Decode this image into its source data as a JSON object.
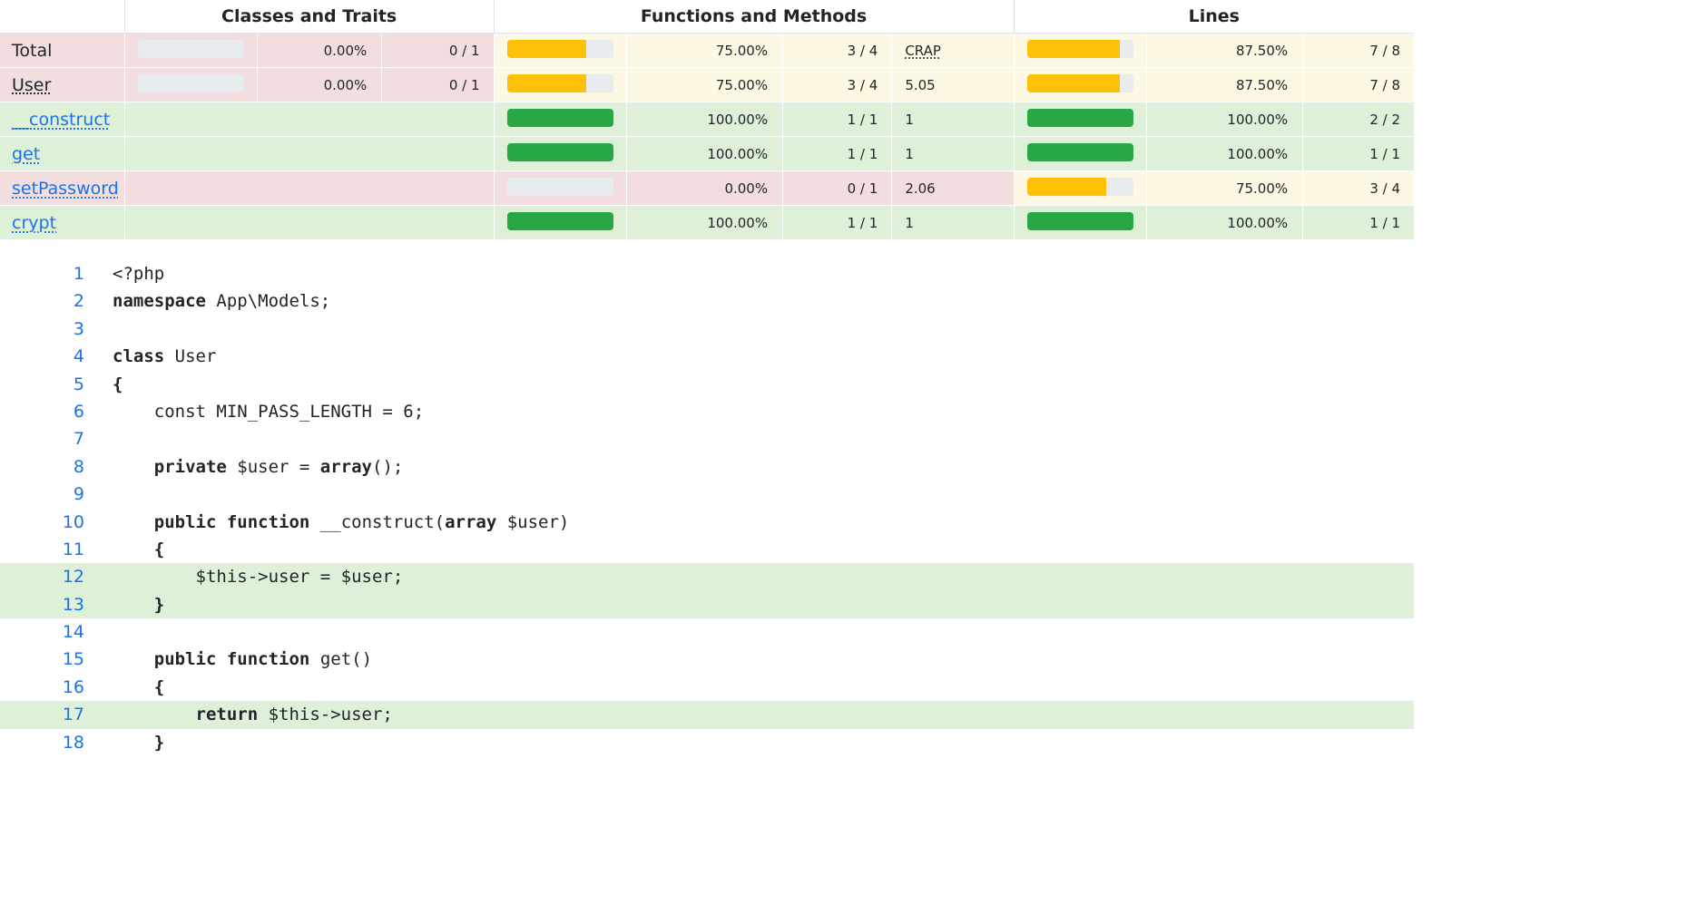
{
  "headers": {
    "blank": "",
    "classes": "Classes and Traits",
    "functions": "Functions and Methods",
    "lines": "Lines"
  },
  "rows": [
    {
      "name": "Total",
      "link": false,
      "cls_pct": "0.00%",
      "cls_count": "0 / 1",
      "cls_bar": 0,
      "fn_pct": "75.00%",
      "fn_count": "3 / 4",
      "fn_bar": 0.75,
      "crap": "CRAP",
      "line_pct": "87.50%",
      "line_count": "7 / 8",
      "line_bar": 0.875
    },
    {
      "name": "User",
      "link": false,
      "cls_pct": "0.00%",
      "cls_count": "0 / 1",
      "cls_bar": 0,
      "fn_pct": "75.00%",
      "fn_count": "3 / 4",
      "fn_bar": 0.75,
      "crap": "5.05",
      "line_pct": "87.50%",
      "line_count": "7 / 8",
      "line_bar": 0.875
    },
    {
      "name": "__construct",
      "link": true,
      "fn_pct": "100.00%",
      "fn_count": "1 / 1",
      "fn_bar": 1,
      "crap": "1",
      "line_pct": "100.00%",
      "line_count": "2 / 2",
      "line_bar": 1
    },
    {
      "name": "get",
      "link": true,
      "fn_pct": "100.00%",
      "fn_count": "1 / 1",
      "fn_bar": 1,
      "crap": "1",
      "line_pct": "100.00%",
      "line_count": "1 / 1",
      "line_bar": 1
    },
    {
      "name": "setPassword",
      "link": true,
      "fn_pct": "0.00%",
      "fn_count": "0 / 1",
      "fn_bar": 0,
      "crap": "2.06",
      "line_pct": "75.00%",
      "line_count": "3 / 4",
      "line_bar": 0.75
    },
    {
      "name": "crypt",
      "link": true,
      "fn_pct": "100.00%",
      "fn_count": "1 / 1",
      "fn_bar": 1,
      "crap": "1",
      "line_pct": "100.00%",
      "line_count": "1 / 1",
      "line_bar": 1
    }
  ],
  "code": [
    {
      "n": "1",
      "text": "<?php",
      "hit": false
    },
    {
      "n": "2",
      "text": "namespace App\\Models;",
      "hit": false
    },
    {
      "n": "3",
      "text": "",
      "hit": false
    },
    {
      "n": "4",
      "text": "class User",
      "hit": false
    },
    {
      "n": "5",
      "text": "{",
      "hit": false
    },
    {
      "n": "6",
      "text": "    const MIN_PASS_LENGTH = 6;",
      "hit": false
    },
    {
      "n": "7",
      "text": "",
      "hit": false
    },
    {
      "n": "8",
      "text": "    private $user = array();",
      "hit": false
    },
    {
      "n": "9",
      "text": "",
      "hit": false
    },
    {
      "n": "10",
      "text": "    public function __construct(array $user)",
      "hit": false
    },
    {
      "n": "11",
      "text": "    {",
      "hit": false
    },
    {
      "n": "12",
      "text": "        $this->user = $user;",
      "hit": true
    },
    {
      "n": "13",
      "text": "    }",
      "hit": true
    },
    {
      "n": "14",
      "text": "",
      "hit": false
    },
    {
      "n": "15",
      "text": "    public function get()",
      "hit": false
    },
    {
      "n": "16",
      "text": "    {",
      "hit": false
    },
    {
      "n": "17",
      "text": "        return $this->user;",
      "hit": true
    },
    {
      "n": "18",
      "text": "    }",
      "hit": false
    }
  ],
  "keywords": [
    "namespace",
    "class",
    "private",
    "array",
    "public",
    "function",
    "return"
  ],
  "colors": {
    "danger": "#f2dede",
    "success": "#dff0d8",
    "warning": "#fcf8e3",
    "bar_yellow": "#ffc107",
    "bar_green": "#28a745",
    "bar_empty": "#e9ecef",
    "link": "#1a73e8"
  }
}
